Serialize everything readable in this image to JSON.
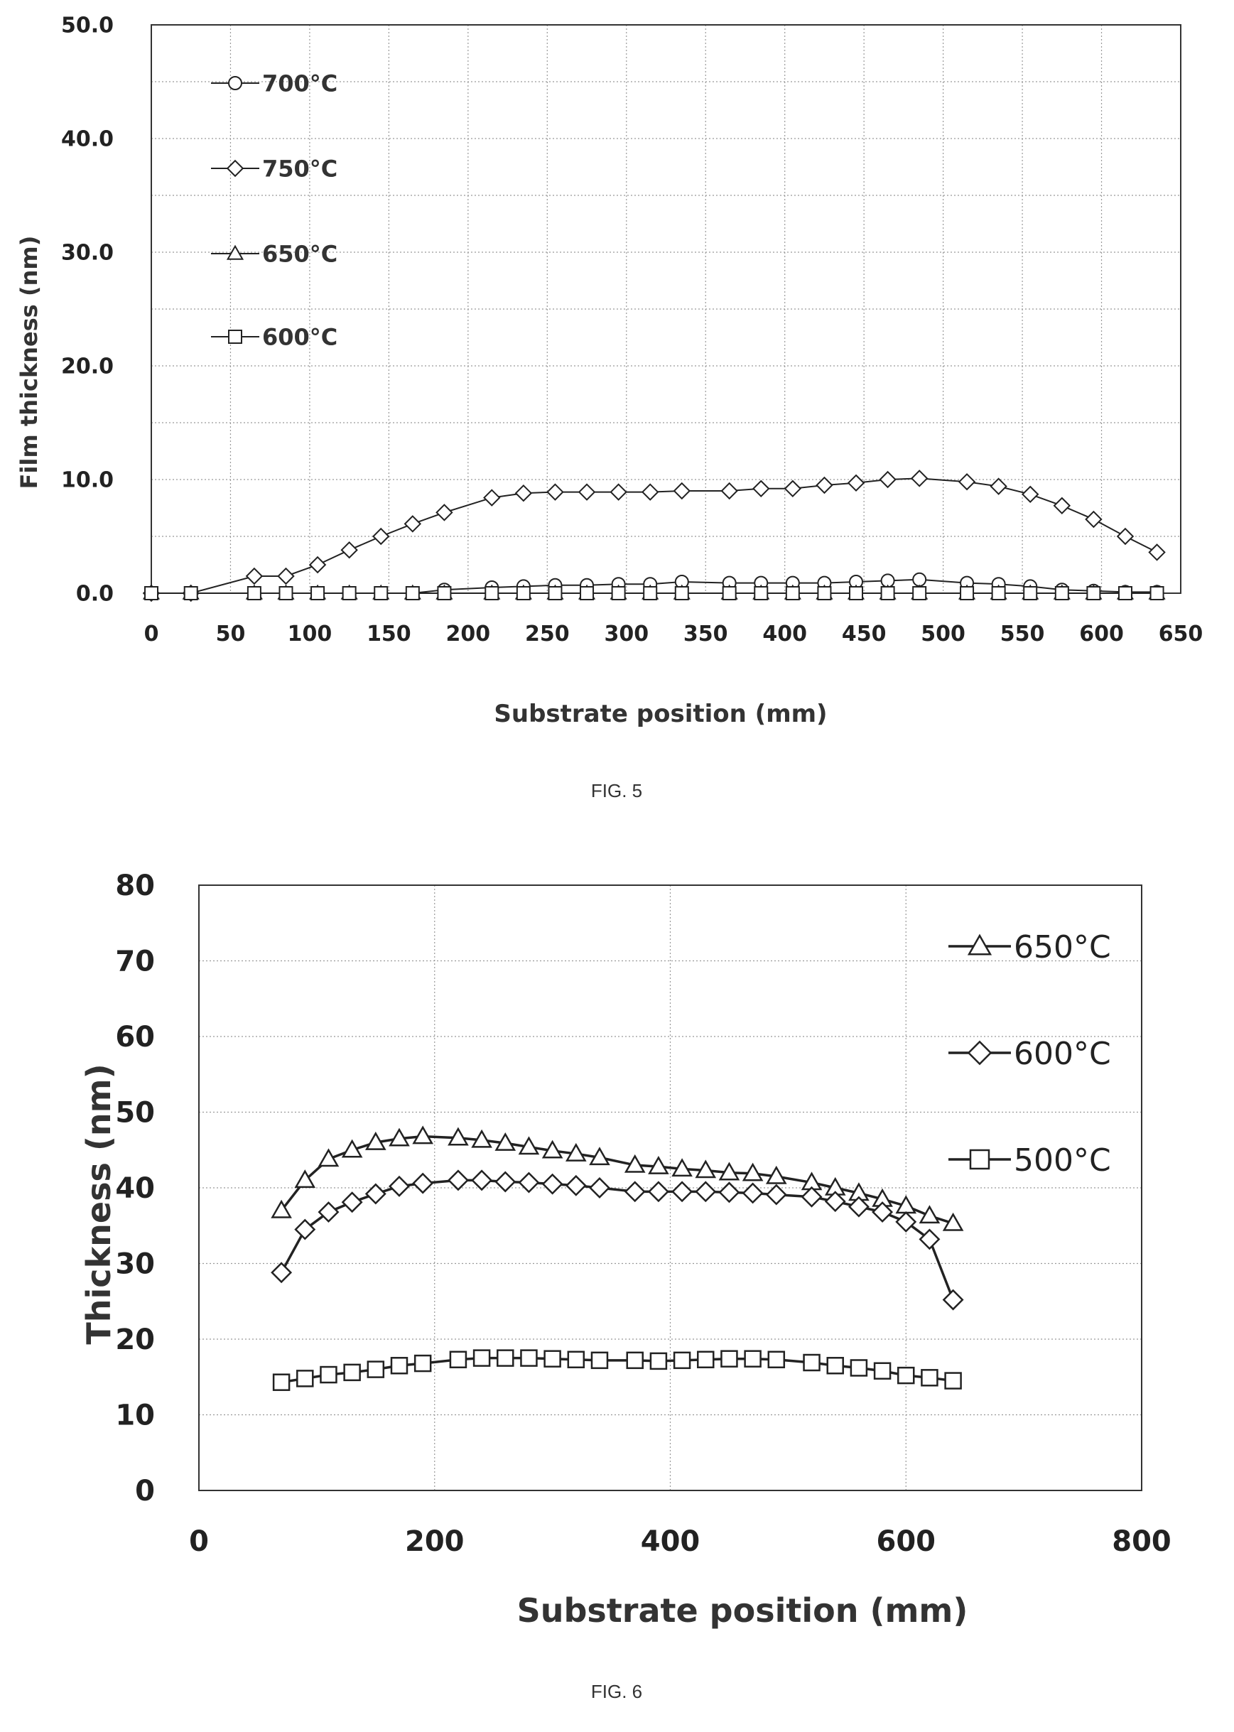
{
  "chart_data": [
    {
      "type": "line",
      "caption": "FIG. 5",
      "xlabel": "Substrate position (mm)",
      "ylabel": "Film thickness (nm)",
      "xlim": [
        0,
        650
      ],
      "ylim": [
        0,
        50
      ],
      "xticks": [
        "0",
        "50",
        "100",
        "150",
        "200",
        "250",
        "300",
        "350",
        "400",
        "450",
        "500",
        "550",
        "600",
        "650"
      ],
      "yticks": [
        "0.0",
        "10.0",
        "20.0",
        "30.0",
        "40.0",
        "50.0"
      ],
      "grid": true,
      "legend_position": "top-left",
      "series": [
        {
          "name": "700°C",
          "marker": "circle",
          "x": [
            0,
            25,
            65,
            85,
            105,
            125,
            145,
            165,
            185,
            215,
            235,
            255,
            275,
            295,
            315,
            335,
            365,
            385,
            405,
            425,
            445,
            465,
            485,
            515,
            535,
            555,
            575,
            595,
            615,
            635
          ],
          "y": [
            0,
            0,
            0,
            0,
            0,
            0,
            0,
            0,
            0.3,
            0.5,
            0.6,
            0.7,
            0.7,
            0.8,
            0.8,
            1.0,
            0.9,
            0.9,
            0.9,
            0.9,
            1.0,
            1.1,
            1.2,
            0.9,
            0.8,
            0.6,
            0.3,
            0.2,
            0.1,
            0.1
          ]
        },
        {
          "name": "750°C",
          "marker": "diamond",
          "x": [
            0,
            25,
            65,
            85,
            105,
            125,
            145,
            165,
            185,
            215,
            235,
            255,
            275,
            295,
            315,
            335,
            365,
            385,
            405,
            425,
            445,
            465,
            485,
            515,
            535,
            555,
            575,
            595,
            615,
            635
          ],
          "y": [
            0,
            0,
            1.5,
            1.5,
            2.5,
            3.8,
            5.0,
            6.1,
            7.1,
            8.4,
            8.8,
            8.9,
            8.9,
            8.9,
            8.9,
            9.0,
            9.0,
            9.2,
            9.2,
            9.5,
            9.7,
            10.0,
            10.1,
            9.8,
            9.4,
            8.7,
            7.7,
            6.5,
            5.0,
            3.6
          ]
        },
        {
          "name": "650°C",
          "marker": "triangle",
          "x": [
            0,
            25,
            65,
            85,
            105,
            125,
            145,
            165,
            185,
            215,
            235,
            255,
            275,
            295,
            315,
            335,
            365,
            385,
            405,
            425,
            445,
            465,
            485,
            515,
            535,
            555,
            575,
            595,
            615,
            635
          ],
          "y": [
            0,
            0,
            0,
            0,
            0,
            0,
            0,
            0,
            0,
            0,
            0,
            0,
            0,
            0,
            0,
            0,
            0,
            0,
            0,
            0,
            0,
            0,
            0,
            0,
            0,
            0,
            0,
            0,
            0,
            0
          ]
        },
        {
          "name": "600°C",
          "marker": "square",
          "x": [
            0,
            25,
            65,
            85,
            105,
            125,
            145,
            165,
            185,
            215,
            235,
            255,
            275,
            295,
            315,
            335,
            365,
            385,
            405,
            425,
            445,
            465,
            485,
            515,
            535,
            555,
            575,
            595,
            615,
            635
          ],
          "y": [
            0,
            0,
            0,
            0,
            0,
            0,
            0,
            0,
            0,
            0,
            0,
            0,
            0,
            0,
            0,
            0,
            0,
            0,
            0,
            0,
            0,
            0,
            0,
            0,
            0,
            0,
            0,
            0,
            0,
            0
          ]
        }
      ]
    },
    {
      "type": "line",
      "caption": "FIG. 6",
      "xlabel": "Substrate position (mm)",
      "ylabel": "Thickness (nm)",
      "xlim": [
        0,
        800
      ],
      "ylim": [
        0,
        80
      ],
      "xticks": [
        "0",
        "200",
        "400",
        "600",
        "800"
      ],
      "yticks": [
        "0",
        "10",
        "20",
        "30",
        "40",
        "50",
        "60",
        "70",
        "80"
      ],
      "grid": true,
      "legend_position": "top-right",
      "series": [
        {
          "name": "650°C",
          "marker": "triangle",
          "x": [
            70,
            90,
            110,
            130,
            150,
            170,
            190,
            220,
            240,
            260,
            280,
            300,
            320,
            340,
            370,
            390,
            410,
            430,
            450,
            470,
            490,
            520,
            540,
            560,
            580,
            600,
            620,
            640
          ],
          "y": [
            37,
            41,
            43.8,
            45,
            46,
            46.5,
            46.8,
            46.6,
            46.3,
            45.9,
            45.4,
            44.9,
            44.5,
            44,
            43,
            42.8,
            42.5,
            42.3,
            42,
            41.9,
            41.5,
            40.7,
            40,
            39.3,
            38.5,
            37.6,
            36.3,
            35.3
          ]
        },
        {
          "name": "600°C",
          "marker": "diamond",
          "x": [
            70,
            90,
            110,
            130,
            150,
            170,
            190,
            220,
            240,
            260,
            280,
            300,
            320,
            340,
            370,
            390,
            410,
            430,
            450,
            470,
            490,
            520,
            540,
            560,
            580,
            600,
            620,
            640
          ],
          "y": [
            28.8,
            34.5,
            36.8,
            38.1,
            39.2,
            40.2,
            40.6,
            41,
            41,
            40.8,
            40.7,
            40.5,
            40.3,
            40,
            39.5,
            39.5,
            39.5,
            39.5,
            39.4,
            39.3,
            39.1,
            38.8,
            38.2,
            37.5,
            36.8,
            35.5,
            33.2,
            25.2
          ]
        },
        {
          "name": "500°C",
          "marker": "square",
          "x": [
            70,
            90,
            110,
            130,
            150,
            170,
            190,
            220,
            240,
            260,
            280,
            300,
            320,
            340,
            370,
            390,
            410,
            430,
            450,
            470,
            490,
            520,
            540,
            560,
            580,
            600,
            620,
            640
          ],
          "y": [
            14.3,
            14.8,
            15.3,
            15.6,
            16,
            16.5,
            16.8,
            17.3,
            17.5,
            17.5,
            17.5,
            17.4,
            17.3,
            17.2,
            17.2,
            17.1,
            17.2,
            17.3,
            17.4,
            17.4,
            17.3,
            16.9,
            16.5,
            16.2,
            15.8,
            15.2,
            14.9,
            14.5
          ]
        }
      ]
    }
  ]
}
